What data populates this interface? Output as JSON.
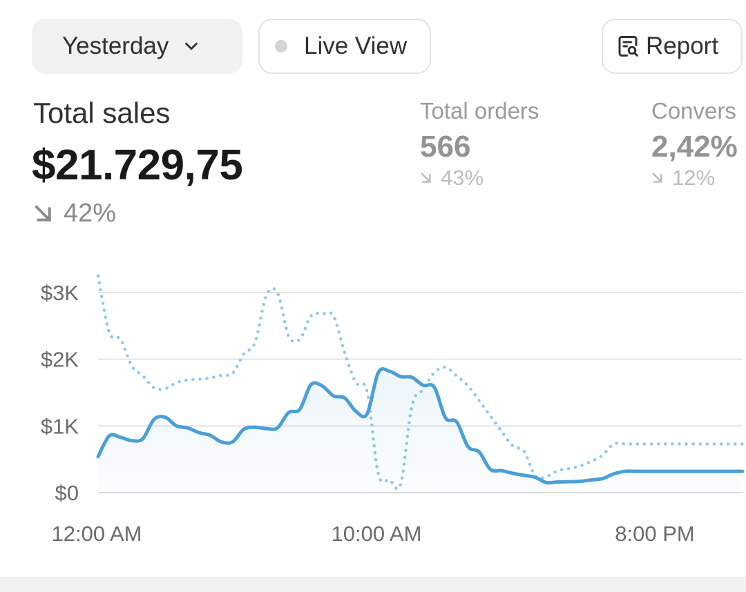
{
  "controls": {
    "date_range": "Yesterday",
    "live_view": "Live View",
    "report": "Report"
  },
  "metrics": {
    "total_sales": {
      "label": "Total sales",
      "value": "$21.729,75",
      "change": "42%"
    },
    "total_orders": {
      "label": "Total orders",
      "value": "566",
      "change": "43%"
    },
    "conversion": {
      "label": "Convers",
      "value": "2,42%",
      "change": "12%"
    }
  },
  "icons": {
    "date_dropdown": "chevron-down-icon",
    "live_status": "status-dot-icon",
    "report": "report-search-icon",
    "trend": "arrow-down-right-icon"
  },
  "colors": {
    "current_series": "#4a9fd8",
    "previous_series": "#8ec9ea",
    "grid": "#e3e3e3",
    "text": "#303030",
    "muted": "#8a8a8a"
  },
  "chart_data": {
    "type": "line",
    "x_ticks": [
      "12:00 AM",
      "10:00 AM",
      "8:00 PM"
    ],
    "y_ticks": [
      "$3K",
      "$2K",
      "$1K",
      "$0"
    ],
    "ylim": [
      0,
      3000
    ],
    "grid": true,
    "series": [
      {
        "style": "solid",
        "filled": true,
        "x": [
          0,
          0.4,
          0.8,
          1.2,
          1.6,
          2,
          2.4,
          2.8,
          3.2,
          3.6,
          4,
          4.4,
          4.8,
          5.2,
          5.6,
          6,
          6.4,
          6.8,
          7.2,
          7.6,
          8,
          8.4,
          8.8,
          9.2,
          9.6,
          10,
          10.4,
          10.8,
          11.2,
          11.6,
          12,
          12.4,
          12.8,
          13.2,
          13.6,
          14,
          14.4,
          14.8,
          15.2,
          15.6,
          16,
          16.4,
          16.8,
          17.2,
          17.6,
          18,
          18.4,
          18.8,
          19.2,
          19.6,
          20,
          20.4,
          20.8,
          21.2,
          21.6,
          22,
          22.4,
          22.8,
          23
        ],
        "values": [
          540,
          850,
          830,
          780,
          810,
          1100,
          1130,
          1000,
          970,
          900,
          860,
          760,
          760,
          950,
          980,
          960,
          970,
          1200,
          1250,
          1620,
          1600,
          1450,
          1420,
          1220,
          1180,
          1800,
          1820,
          1740,
          1730,
          1610,
          1580,
          1120,
          1060,
          690,
          610,
          350,
          330,
          290,
          260,
          230,
          150,
          160,
          165,
          170,
          190,
          210,
          280,
          320,
          320,
          320,
          320,
          320,
          320,
          320,
          320,
          320,
          320,
          320,
          320
        ]
      },
      {
        "style": "dotted",
        "filled": false,
        "x": [
          0,
          0.4,
          0.8,
          1.2,
          1.6,
          2,
          2.4,
          2.8,
          3.2,
          3.6,
          4,
          4.4,
          4.8,
          5.2,
          5.6,
          6,
          6.4,
          6.8,
          7.2,
          7.6,
          8,
          8.4,
          8.8,
          9.2,
          9.6,
          10,
          10.4,
          10.8,
          11.2,
          11.6,
          12,
          12.4,
          12.8,
          13.2,
          13.6,
          14,
          14.4,
          14.8,
          15.2,
          15.6,
          16,
          16.4,
          16.8,
          17.2,
          17.6,
          18,
          18.4,
          18.8,
          19.2,
          19.6,
          20,
          20.4,
          20.8,
          21.2,
          21.6,
          22,
          22.4,
          22.8,
          23
        ],
        "values": [
          3250,
          2400,
          2300,
          1900,
          1750,
          1570,
          1560,
          1650,
          1690,
          1700,
          1720,
          1760,
          1790,
          2080,
          2250,
          2950,
          3000,
          2350,
          2300,
          2650,
          2680,
          2650,
          2100,
          1650,
          1520,
          280,
          190,
          130,
          1300,
          1550,
          1800,
          1880,
          1750,
          1600,
          1380,
          1150,
          920,
          700,
          620,
          250,
          240,
          330,
          360,
          400,
          470,
          560,
          730,
          730,
          730,
          730,
          730,
          730,
          730,
          730,
          730,
          730,
          730,
          730,
          730
        ]
      }
    ]
  }
}
